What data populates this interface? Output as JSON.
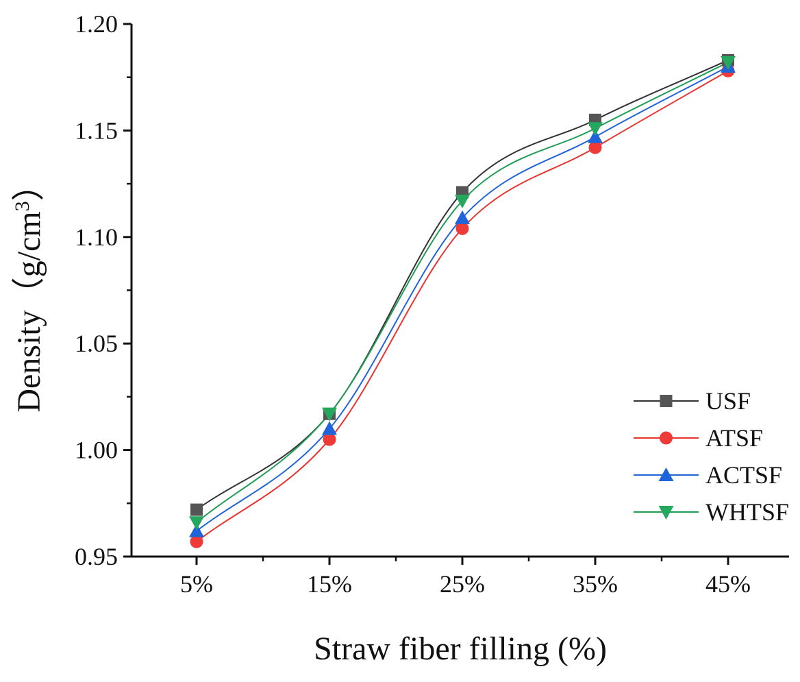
{
  "chart_data": {
    "type": "line",
    "xlabel": "Straw fiber filling (%)",
    "ylabel": "Density（g/cm",
    "ylabel_superscript": "3",
    "ylabel_close": "）",
    "categories": [
      "5%",
      "15%",
      "25%",
      "35%",
      "45%"
    ],
    "ylim": [
      0.95,
      1.2
    ],
    "yticks": [
      "0.95",
      "1.00",
      "1.05",
      "1.10",
      "1.15",
      "1.20"
    ],
    "grid": false,
    "legend_position": "center-right",
    "series": [
      {
        "name": "USF",
        "marker": "square",
        "color": "#333333",
        "marker_color": "#555555",
        "values": [
          0.972,
          1.017,
          1.121,
          1.155,
          1.183
        ]
      },
      {
        "name": "ATSF",
        "marker": "circle",
        "color": "#e8342f",
        "marker_color": "#ee3b38",
        "values": [
          0.957,
          1.005,
          1.104,
          1.142,
          1.178
        ]
      },
      {
        "name": "ACTSF",
        "marker": "triangle-up",
        "color": "#1f64d8",
        "marker_color": "#1f64d8",
        "values": [
          0.962,
          1.01,
          1.109,
          1.147,
          1.18
        ]
      },
      {
        "name": "WHTSF",
        "marker": "triangle-down",
        "color": "#1f9d55",
        "marker_color": "#25a75e",
        "values": [
          0.966,
          1.017,
          1.117,
          1.151,
          1.182
        ]
      }
    ]
  }
}
